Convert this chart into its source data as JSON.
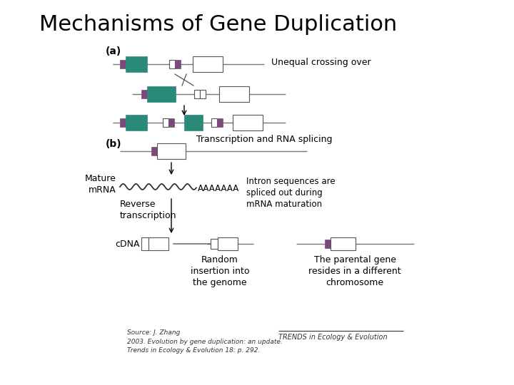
{
  "title": "Mechanisms of Gene Duplication",
  "title_fontsize": 22,
  "background_color": "#ffffff",
  "teal_color": "#2a8a7a",
  "purple_color": "#7a4a7a",
  "line_color": "#333333",
  "text_color": "#000000",
  "source_text": "Source: J. Zhang\n2003. Evolution by gene duplication: an update.\nTrends in Ecology & Evolution 18: p. 292.",
  "label_a": "(a)",
  "label_b": "(b)",
  "unequal_label": "Unequal crossing over",
  "transcription_label": "Transcription and RNA splicing",
  "mature_mrna": "Mature\nmRNA",
  "aaaa_label": "AAAAAAA",
  "intron_label": "Intron sequences are\nspliced out during\nmRNA maturation",
  "reverse_label": "Reverse\ntranscription",
  "cdna_label": "cDNA",
  "random_label": "Random\ninsertion into\nthe genome",
  "parental_label": "The parental gene\nresides in a different\nchromosome",
  "trends_label": "TRENDS in Ecology & Evolution"
}
